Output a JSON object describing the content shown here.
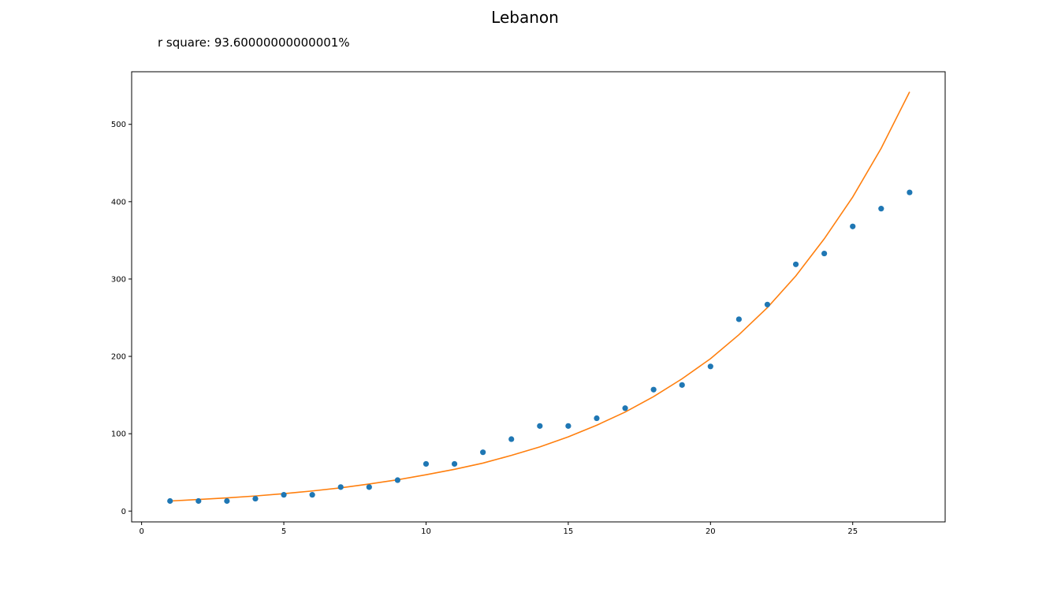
{
  "chart_data": {
    "type": "scatter",
    "title": "Lebanon",
    "subtitle": "r square: 93.60000000000001%",
    "xlabel": "",
    "ylabel": "",
    "xlim": [
      -0.35,
      28.25
    ],
    "ylim": [
      -14,
      568
    ],
    "xticks": [
      0,
      5,
      10,
      15,
      20,
      25
    ],
    "yticks": [
      0,
      100,
      200,
      300,
      400,
      500
    ],
    "grid": false,
    "series": [
      {
        "kind": "scatter",
        "color": "#1f77b4",
        "x": [
          1,
          2,
          3,
          4,
          5,
          6,
          7,
          8,
          9,
          10,
          11,
          12,
          13,
          14,
          15,
          16,
          17,
          18,
          19,
          20,
          21,
          22,
          23,
          24,
          25,
          26,
          27
        ],
        "y": [
          13,
          13,
          13,
          16,
          21,
          21,
          31,
          31,
          40,
          61,
          61,
          76,
          93,
          110,
          110,
          120,
          133,
          157,
          163,
          187,
          248,
          267,
          319,
          333,
          368,
          391,
          412
        ]
      },
      {
        "kind": "line",
        "color": "#ff7f0e",
        "x": [
          1,
          2,
          3,
          4,
          5,
          6,
          7,
          8,
          9,
          10,
          11,
          12,
          13,
          14,
          15,
          16,
          17,
          18,
          19,
          20,
          21,
          22,
          23,
          24,
          25,
          26,
          27
        ],
        "y": [
          13,
          15,
          17,
          19.5,
          22.5,
          26,
          30,
          35,
          40.5,
          47,
          54,
          62,
          72,
          83,
          96,
          111,
          128,
          148,
          171,
          197,
          228,
          263,
          304,
          352,
          406,
          469,
          542
        ]
      }
    ]
  }
}
